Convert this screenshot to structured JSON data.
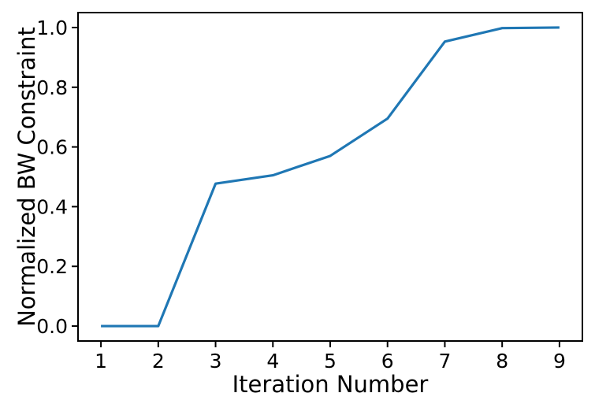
{
  "figure": {
    "background": "#ffffff",
    "text_color": "#000000"
  },
  "chart_data": {
    "type": "line",
    "title": "",
    "xlabel": "Iteration Number",
    "ylabel": "Normalized BW Constraint",
    "x": [
      1,
      2,
      3,
      4,
      5,
      6,
      7,
      8,
      9
    ],
    "series": [
      {
        "name": "normalized-bw-constraint",
        "color": "#1f77b4",
        "line_width": 3.2,
        "values": [
          0.0,
          0.0,
          0.477,
          0.505,
          0.57,
          0.695,
          0.953,
          0.998,
          1.0
        ]
      }
    ],
    "xticks": {
      "values": [
        1,
        2,
        3,
        4,
        5,
        6,
        7,
        8,
        9
      ],
      "labels": [
        "1",
        "2",
        "3",
        "4",
        "5",
        "6",
        "7",
        "8",
        "9"
      ]
    },
    "yticks": {
      "values": [
        0.0,
        0.2,
        0.4,
        0.6,
        0.8,
        1.0
      ],
      "labels": [
        "0.0",
        "0.2",
        "0.4",
        "0.6",
        "0.8",
        "1.0"
      ]
    },
    "xlim": [
      0.6,
      9.4
    ],
    "ylim": [
      -0.05,
      1.05
    ],
    "grid": false,
    "legend": "none",
    "axis_color": "#000000",
    "spine_width": 2,
    "tick_length": 8,
    "tick_width": 2
  }
}
